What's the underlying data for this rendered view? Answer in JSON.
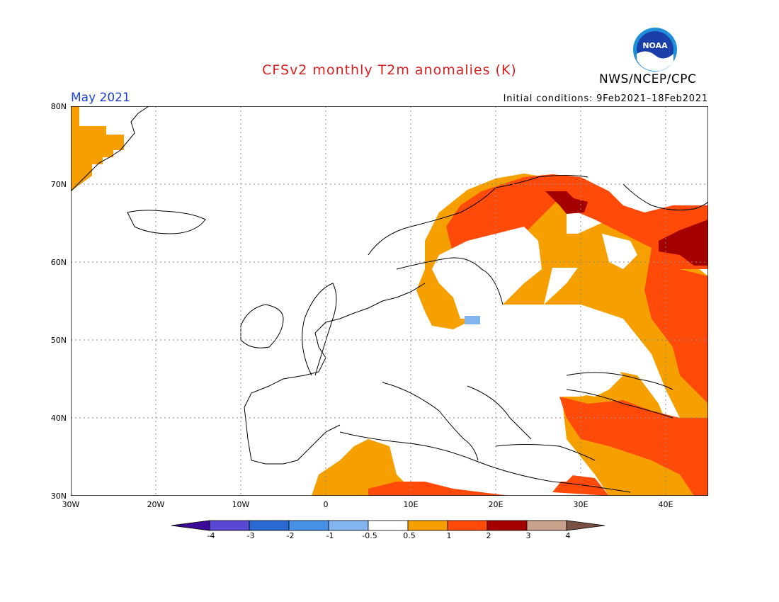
{
  "header": {
    "title": "CFSv2 monthly T2m anomalies (K)",
    "agency": "NWS/NCEP/CPC",
    "logo_text": "NOAA",
    "month": "May 2021",
    "initial_conditions": "Initial conditions: 9Feb2021–18Feb2021"
  },
  "map": {
    "lat_labels": [
      "80N",
      "70N",
      "60N",
      "50N",
      "40N",
      "30N"
    ],
    "lon_labels": [
      "30W",
      "20W",
      "10W",
      "0",
      "10E",
      "20E",
      "30E",
      "40E"
    ],
    "lat_range": [
      30,
      80
    ],
    "lon_range": [
      -30,
      45
    ],
    "grid": true,
    "field_regions": [
      {
        "name": "greenland",
        "bin": "0.5-1"
      },
      {
        "name": "scandinavia",
        "bin": "1-2"
      },
      {
        "name": "eastern-europe",
        "bin": "0.5-1"
      },
      {
        "name": "western-russia",
        "bin": "1-2"
      },
      {
        "name": "northern-russia-core",
        "bin": "2-3"
      },
      {
        "name": "turkey",
        "bin": "1-2"
      },
      {
        "name": "north-africa",
        "bin": "0.5-1"
      },
      {
        "name": "central-europe",
        "bin": "-0.5-0.5"
      },
      {
        "name": "poland-spot",
        "bin": "-1--0.5"
      }
    ]
  },
  "colorbar": {
    "labels": [
      "-4",
      "-3",
      "-2",
      "-1",
      "-0.5",
      "0.5",
      "1",
      "2",
      "3",
      "4"
    ],
    "colors": [
      "#3c0a96",
      "#5a48d2",
      "#2a68d2",
      "#4690e6",
      "#82b4f0",
      "#ffffff",
      "#f5a000",
      "#ff4a0a",
      "#a50000",
      "#c8a08c",
      "#785046"
    ]
  }
}
